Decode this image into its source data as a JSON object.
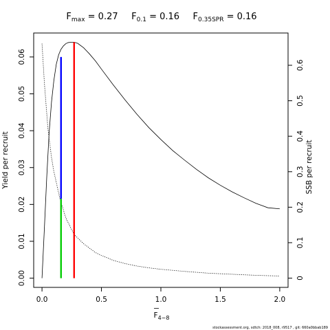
{
  "chart_data": {
    "type": "line",
    "title_parts": [
      {
        "main": "F",
        "sub": "max",
        "value": " = 0.27"
      },
      {
        "main": "F",
        "sub": "0.1",
        "value": " = 0.16"
      },
      {
        "main": "F",
        "sub": "0.35SPR",
        "value": " = 0.16"
      }
    ],
    "xlabel": {
      "main": "F",
      "sub": "4−8"
    },
    "ylabel": "Yield per recruit",
    "y2label": "SSB per recruit",
    "xlim": [
      -0.07,
      2.07
    ],
    "ylim": [
      -0.0025,
      0.0665
    ],
    "y2lim": [
      -0.026,
      0.691
    ],
    "x_ticks": [
      0.0,
      0.5,
      1.0,
      1.5,
      2.0
    ],
    "x_tick_labels": [
      "0.0",
      "0.5",
      "1.0",
      "1.5",
      "2.0"
    ],
    "y_ticks": [
      0.0,
      0.01,
      0.02,
      0.03,
      0.04,
      0.05,
      0.06
    ],
    "y_tick_labels": [
      "0.00",
      "0.01",
      "0.02",
      "0.03",
      "0.04",
      "0.05",
      "0.06"
    ],
    "y2_ticks": [
      0,
      0.1,
      0.2,
      0.3,
      0.4,
      0.5,
      0.6
    ],
    "y2_tick_labels": [
      "0",
      "0.1",
      "0.2",
      "0.3",
      "0.4",
      "0.5",
      "0.6"
    ],
    "series": [
      {
        "axis": "left",
        "style": "solid",
        "color": "#000000",
        "x": [
          0.0,
          0.02,
          0.04,
          0.06,
          0.08,
          0.1,
          0.12,
          0.14,
          0.16,
          0.18,
          0.2,
          0.22,
          0.25,
          0.27,
          0.3,
          0.35,
          0.4,
          0.45,
          0.5,
          0.6,
          0.7,
          0.8,
          0.9,
          1.0,
          1.1,
          1.2,
          1.3,
          1.4,
          1.5,
          1.6,
          1.7,
          1.8,
          1.9,
          2.0
        ],
        "y": [
          0.0,
          0.0135,
          0.0275,
          0.0395,
          0.0478,
          0.0537,
          0.058,
          0.0606,
          0.0621,
          0.063,
          0.0636,
          0.0639,
          0.064,
          0.064,
          0.0637,
          0.0625,
          0.0608,
          0.0589,
          0.0567,
          0.0524,
          0.0483,
          0.0444,
          0.0408,
          0.0376,
          0.0346,
          0.032,
          0.0295,
          0.0272,
          0.0252,
          0.0234,
          0.0218,
          0.0203,
          0.0191,
          0.0188
        ]
      },
      {
        "axis": "right",
        "style": "dotted",
        "color": "#000000",
        "x": [
          0.0,
          0.02,
          0.05,
          0.08,
          0.1,
          0.15,
          0.2,
          0.27,
          0.35,
          0.45,
          0.5,
          0.6,
          0.7,
          0.8,
          0.9,
          1.0,
          1.2,
          1.4,
          1.6,
          1.8,
          2.0
        ],
        "y": [
          0.661,
          0.55,
          0.42,
          0.34,
          0.3,
          0.225,
          0.17,
          0.123,
          0.097,
          0.072,
          0.064,
          0.05,
          0.041,
          0.034,
          0.029,
          0.025,
          0.019,
          0.014,
          0.011,
          0.008,
          0.006
        ]
      }
    ],
    "reference_lines": [
      {
        "name": "F0.1",
        "color": "#0000ff",
        "x": 0.16,
        "y_from": 0.0215,
        "y_to": 0.06
      },
      {
        "name": "F0.35SPR",
        "color": "#00cc00",
        "x": 0.16,
        "y_from": 0.0,
        "y_to": 0.0215
      },
      {
        "name": "Fmax",
        "color": "#ff0000",
        "x": 0.27,
        "y_from": 0.0,
        "y_to": 0.064
      }
    ]
  },
  "footer": "stockassessment.org, sdtch: 2018_008, r9517 , git: 660a0bbab189"
}
